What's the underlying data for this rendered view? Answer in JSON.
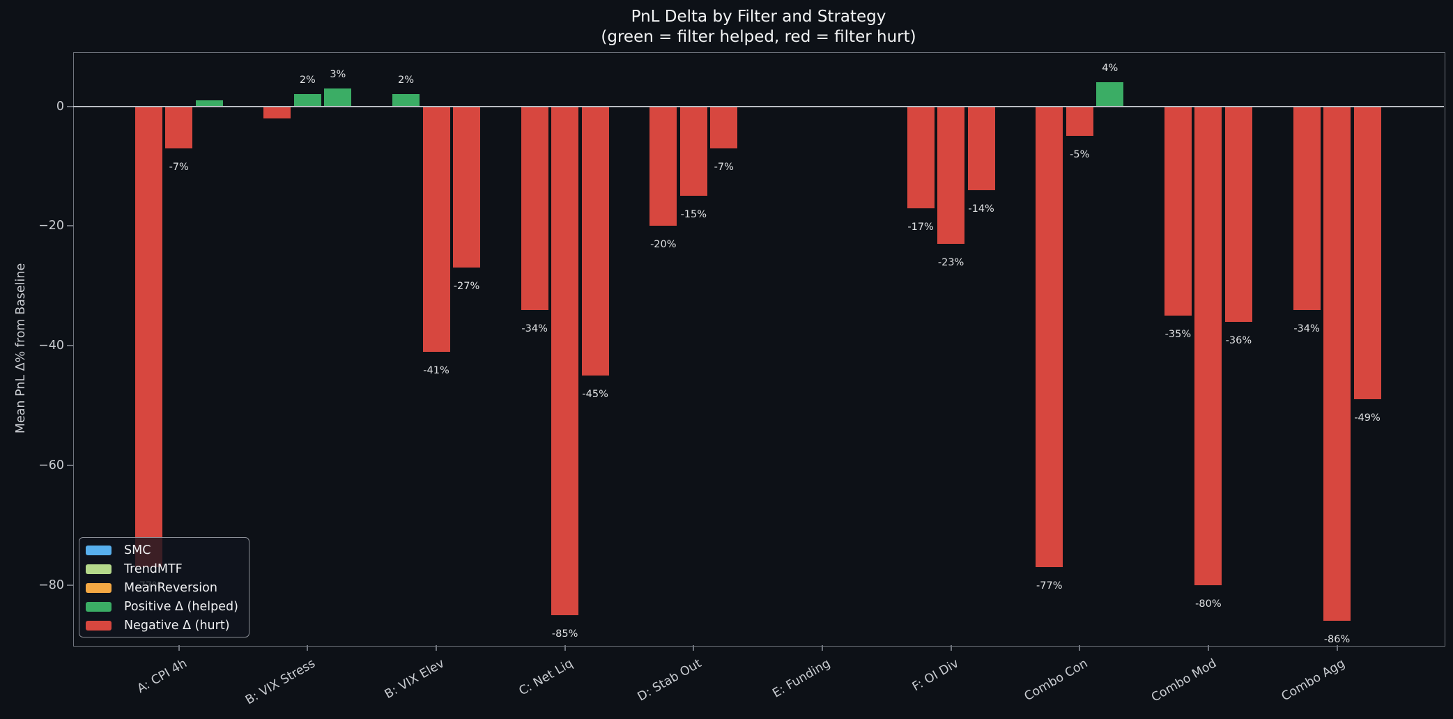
{
  "title": {
    "line1": "PnL Delta by Filter and Strategy",
    "line2": "(green = filter helped, red = filter hurt)"
  },
  "y_axis_label": "Mean PnL Δ% from Baseline",
  "colors": {
    "background": "#0d1117",
    "plot_border": "#70757e",
    "zero_line": "#b9bdc3",
    "positive_bar": "#3bad65",
    "negative_bar": "#d7473f",
    "tick_text": "#c9ccd1",
    "bar_label_text": "#dfe1e3",
    "title_text": "#f2f3f4",
    "legend_bg": "rgba(17,21,30,0.78)",
    "legend_border": "#8b8f97"
  },
  "legend": {
    "items": [
      {
        "label": "SMC",
        "color": "#58b0ee"
      },
      {
        "label": "TrendMTF",
        "color": "#b5d98b"
      },
      {
        "label": "MeanReversion",
        "color": "#f4a844"
      },
      {
        "label": "Positive Δ (helped)",
        "color": "#3bad65"
      },
      {
        "label": "Negative Δ (hurt)",
        "color": "#d7473f"
      }
    ]
  },
  "chart_data": {
    "type": "bar",
    "title": "PnL Delta by Filter and Strategy (green = filter helped, red = filter hurt)",
    "xlabel": "",
    "ylabel": "Mean PnL Δ% from Baseline",
    "categories": [
      "A: CPI 4h",
      "B: VIX Stress",
      "B: VIX Elev",
      "C: Net Liq",
      "D: Stab Out",
      "E: Funding",
      "F: OI Div",
      "Combo Con",
      "Combo Mod",
      "Combo Agg"
    ],
    "series": [
      {
        "name": "SMC",
        "values": [
          -77,
          -2,
          2,
          -34,
          -20,
          0,
          -17,
          -77,
          -35,
          -34
        ],
        "labels": [
          "-77%",
          "",
          "2%",
          "-34%",
          "-20%",
          "",
          "-17%",
          "-77%",
          "-35%",
          "-34%"
        ]
      },
      {
        "name": "TrendMTF",
        "values": [
          -7,
          2,
          -41,
          -85,
          -15,
          0,
          -23,
          -5,
          -80,
          -86
        ],
        "labels": [
          "-7%",
          "2%",
          "-41%",
          "-85%",
          "-15%",
          "",
          "-23%",
          "-5%",
          "-80%",
          "-86%"
        ]
      },
      {
        "name": "MeanReversion",
        "values": [
          1,
          3,
          -27,
          -45,
          -7,
          0,
          -14,
          4,
          -36,
          -49
        ],
        "labels": [
          "",
          "3%",
          "-27%",
          "-45%",
          "-7%",
          "",
          "-14%",
          "4%",
          "-36%",
          "-49%"
        ]
      }
    ],
    "bar_color_rule": "green if value > 0 else red",
    "yticks": [
      0,
      -20,
      -40,
      -60,
      -80
    ],
    "ylim": [
      -90,
      9
    ],
    "grid": false,
    "legend_position": "lower left"
  }
}
